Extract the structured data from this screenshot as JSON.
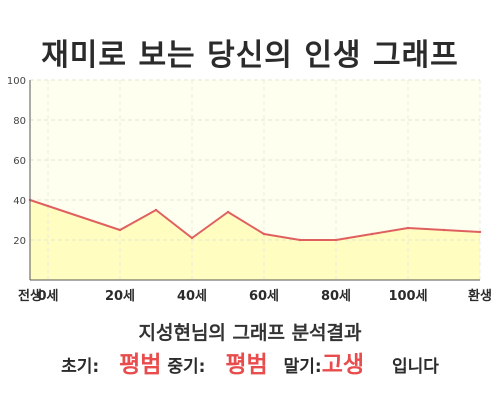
{
  "title": "재미로 보는 당신의 인생 그래프",
  "chart_data": {
    "type": "area",
    "x": [
      -5,
      0,
      20,
      30,
      40,
      50,
      60,
      70,
      80,
      90,
      100,
      110,
      120
    ],
    "y": [
      40,
      37,
      25,
      35,
      21,
      34,
      23,
      20,
      20,
      23,
      26,
      25,
      24
    ],
    "xlim": [
      -5,
      120
    ],
    "ylim": [
      0,
      100
    ],
    "yticks": [
      20,
      40,
      60,
      80,
      100
    ],
    "xtick_values": [
      -5,
      0,
      20,
      40,
      60,
      80,
      100,
      120
    ],
    "xtick_labels": [
      "전생",
      "0세",
      "20세",
      "40세",
      "60세",
      "80세",
      "100세",
      "환생"
    ],
    "grid": true,
    "fill_color": "#fffdc0",
    "line_color": "#e06060"
  },
  "result_title": "지성현님의 그래프 분석결과",
  "summary": {
    "early_label": "초기:",
    "early_value": "평범",
    "middle_label": "중기:",
    "middle_value": "평범",
    "late_label": "말기:",
    "late_value": "고생",
    "suffix": "입니다"
  }
}
